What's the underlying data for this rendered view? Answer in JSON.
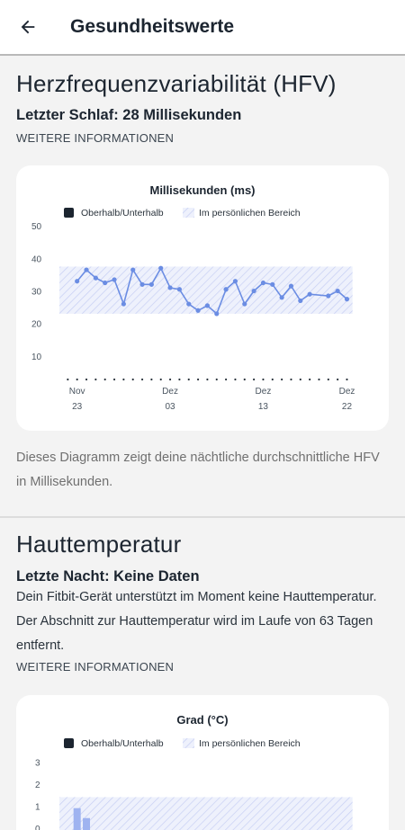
{
  "app_bar": {
    "title": "Gesundheitswerte",
    "back_icon": "arrow-back-icon"
  },
  "hrv": {
    "title": "Herzfrequenzvariabilität (HFV)",
    "subtitle": "Letzter Schlaf: 28 Millisekunden",
    "more_info": "WEITERE INFORMATIONEN",
    "description": "Dieses Diagramm zeigt deine nächtliche durchschnittliche HFV in Millisekunden."
  },
  "skin": {
    "title": "Hauttemperatur",
    "subtitle": "Letzte Nacht: Keine Daten",
    "body": "Dein Fitbit-Gerät unterstützt im Moment keine Hauttemperatur. Der Abschnitt zur Hauttemperatur wird im Laufe von 63 Tagen entfernt.",
    "more_info": "WEITERE INFORMATIONEN"
  },
  "colors": {
    "line": "#6b8de3",
    "band_hatch": "#c7cff4",
    "legend_dark": "#1c2530",
    "bar": "#9fb3f0"
  },
  "chart_data": [
    {
      "type": "line",
      "title": "Millisekunden (ms)",
      "legend": [
        "Oberhalb/Unterhalb",
        "Im persönlichen Bereich"
      ],
      "y_ticks": [
        "50",
        "40",
        "30",
        "20",
        "10"
      ],
      "ylim": [
        5,
        52
      ],
      "x_ticks": [
        {
          "month": "Nov",
          "day": "23",
          "x": 0
        },
        {
          "month": "Dez",
          "day": "03",
          "x": 10
        },
        {
          "month": "Dez",
          "day": "13",
          "x": 20
        },
        {
          "month": "Dez",
          "day": "22",
          "x": 29
        }
      ],
      "xlim": [
        -2,
        30.5
      ],
      "band": [
        23,
        37.5
      ],
      "points": [
        [
          0,
          33
        ],
        [
          1,
          36.5
        ],
        [
          2,
          34
        ],
        [
          3,
          32.5
        ],
        [
          4,
          33.5
        ],
        [
          5,
          26
        ],
        [
          6,
          36.5
        ],
        [
          7,
          32
        ],
        [
          8,
          32
        ],
        [
          9,
          37
        ],
        [
          10,
          31
        ],
        [
          11,
          30.5
        ],
        [
          12,
          26
        ],
        [
          13,
          24
        ],
        [
          14,
          25.5
        ],
        [
          15,
          23
        ],
        [
          16,
          30.5
        ],
        [
          17,
          33
        ],
        [
          18,
          26
        ],
        [
          19,
          30
        ],
        [
          20,
          32.5
        ],
        [
          21,
          32
        ],
        [
          22,
          28
        ],
        [
          23,
          31.5
        ],
        [
          24,
          27
        ],
        [
          25,
          29
        ],
        [
          27,
          28.5
        ],
        [
          28,
          30
        ],
        [
          29,
          27.5
        ]
      ]
    },
    {
      "type": "bar",
      "title": "Grad (°C)",
      "legend": [
        "Oberhalb/Unterhalb",
        "Im persönlichen Bereich"
      ],
      "y_ticks": [
        "3",
        "2",
        "1",
        "0"
      ],
      "ylim": [
        -0.5,
        3.5
      ],
      "xlim": [
        -2,
        30.5
      ],
      "band": [
        -0.5,
        1.4
      ],
      "bars": [
        [
          0,
          0.9
        ],
        [
          1,
          0.45
        ]
      ]
    }
  ]
}
